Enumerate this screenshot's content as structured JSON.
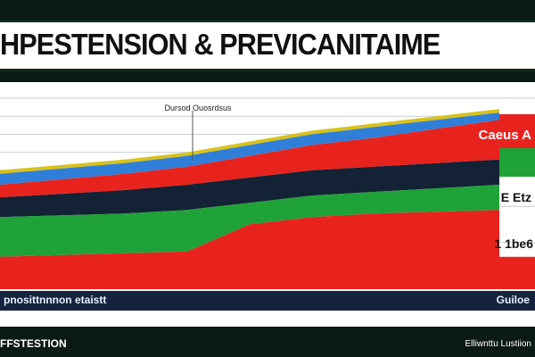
{
  "title": "HPESTENSION & PREVICANITAIME",
  "footer": {
    "left": "pnosittnnnon etaistt",
    "right": "Guiloe"
  },
  "bottom": {
    "left": "FFSTESTION",
    "right": "Elliwnttu Lustiion"
  },
  "chart_data": {
    "type": "area",
    "annotation": "Dursod Ouosrdsus",
    "labels": [
      "Caeus A",
      "E Etz",
      "1 1be6"
    ],
    "x": [
      0,
      1,
      2,
      3,
      4,
      5,
      6,
      7,
      8
    ],
    "series": [
      {
        "color": "#d9c21a",
        "values": [
          60,
          63,
          66,
          70,
          76,
          82,
          86,
          90,
          94
        ]
      },
      {
        "color": "#2f7fd9",
        "values": [
          58,
          61,
          64,
          68,
          74,
          80,
          84,
          88,
          92
        ]
      },
      {
        "color": "#e8231e",
        "values": [
          52,
          55,
          58,
          62,
          68,
          74,
          78,
          83,
          88
        ]
      },
      {
        "color": "#142235",
        "values": [
          45,
          47,
          49,
          52,
          56,
          60,
          62,
          64,
          66
        ]
      },
      {
        "color": "#1fa238",
        "values": [
          34,
          35,
          36,
          38,
          42,
          46,
          48,
          50,
          52
        ]
      },
      {
        "color": "#e8231e",
        "values": [
          12,
          13,
          14,
          15,
          30,
          34,
          36,
          37,
          38
        ]
      }
    ],
    "ylim": [
      0,
      100
    ],
    "grid": true
  },
  "colors": {
    "background": "#0b1a12",
    "plot": "#ffffff",
    "footer": "#16233f",
    "red": "#e8231e",
    "green": "#1fa238",
    "navy": "#142235"
  }
}
